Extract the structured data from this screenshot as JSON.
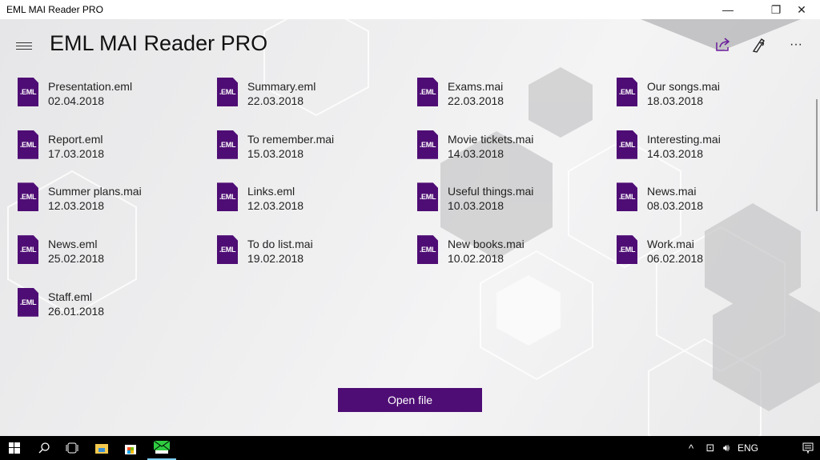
{
  "window": {
    "title": "EML MAI Reader PRO",
    "minimize": "—",
    "restore": "❐",
    "close": "✕"
  },
  "header": {
    "title": "EML MAI Reader PRO",
    "menu_icon": "hamburger-icon",
    "share_icon": "share-icon",
    "sign_icon": "pen-icon",
    "more": "···"
  },
  "files": [
    {
      "name": "Presentation.eml",
      "date": "02.04.2018",
      "icon": ".EML"
    },
    {
      "name": "Summary.eml",
      "date": "22.03.2018",
      "icon": ".EML"
    },
    {
      "name": "Exams.mai",
      "date": "22.03.2018",
      "icon": ".EML"
    },
    {
      "name": "Our songs.mai",
      "date": "18.03.2018",
      "icon": ".EML"
    },
    {
      "name": "Report.eml",
      "date": "17.03.2018",
      "icon": ".EML"
    },
    {
      "name": "To remember.mai",
      "date": "15.03.2018",
      "icon": ".EML"
    },
    {
      "name": "Movie tickets.mai",
      "date": "14.03.2018",
      "icon": ".EML"
    },
    {
      "name": "Interesting.mai",
      "date": "14.03.2018",
      "icon": ".EML"
    },
    {
      "name": "Summer plans.mai",
      "date": "12.03.2018",
      "icon": ".EML"
    },
    {
      "name": "Links.eml",
      "date": "12.03.2018",
      "icon": ".EML"
    },
    {
      "name": "Useful things.mai",
      "date": "10.03.2018",
      "icon": ".EML"
    },
    {
      "name": "News.mai",
      "date": "08.03.2018",
      "icon": ".EML"
    },
    {
      "name": "News.eml",
      "date": "25.02.2018",
      "icon": ".EML"
    },
    {
      "name": "To do list.mai",
      "date": "19.02.2018",
      "icon": ".EML"
    },
    {
      "name": "New books.mai",
      "date": "10.02.2018",
      "icon": ".EML"
    },
    {
      "name": "Work.mai",
      "date": "06.02.2018",
      "icon": ".EML"
    },
    {
      "name": "Staff.eml",
      "date": "26.01.2018",
      "icon": ".EML"
    }
  ],
  "open_button": "Open file",
  "accent": "#4e0d74",
  "taskbar": {
    "language": "ENG",
    "tray_chevron": "^"
  }
}
